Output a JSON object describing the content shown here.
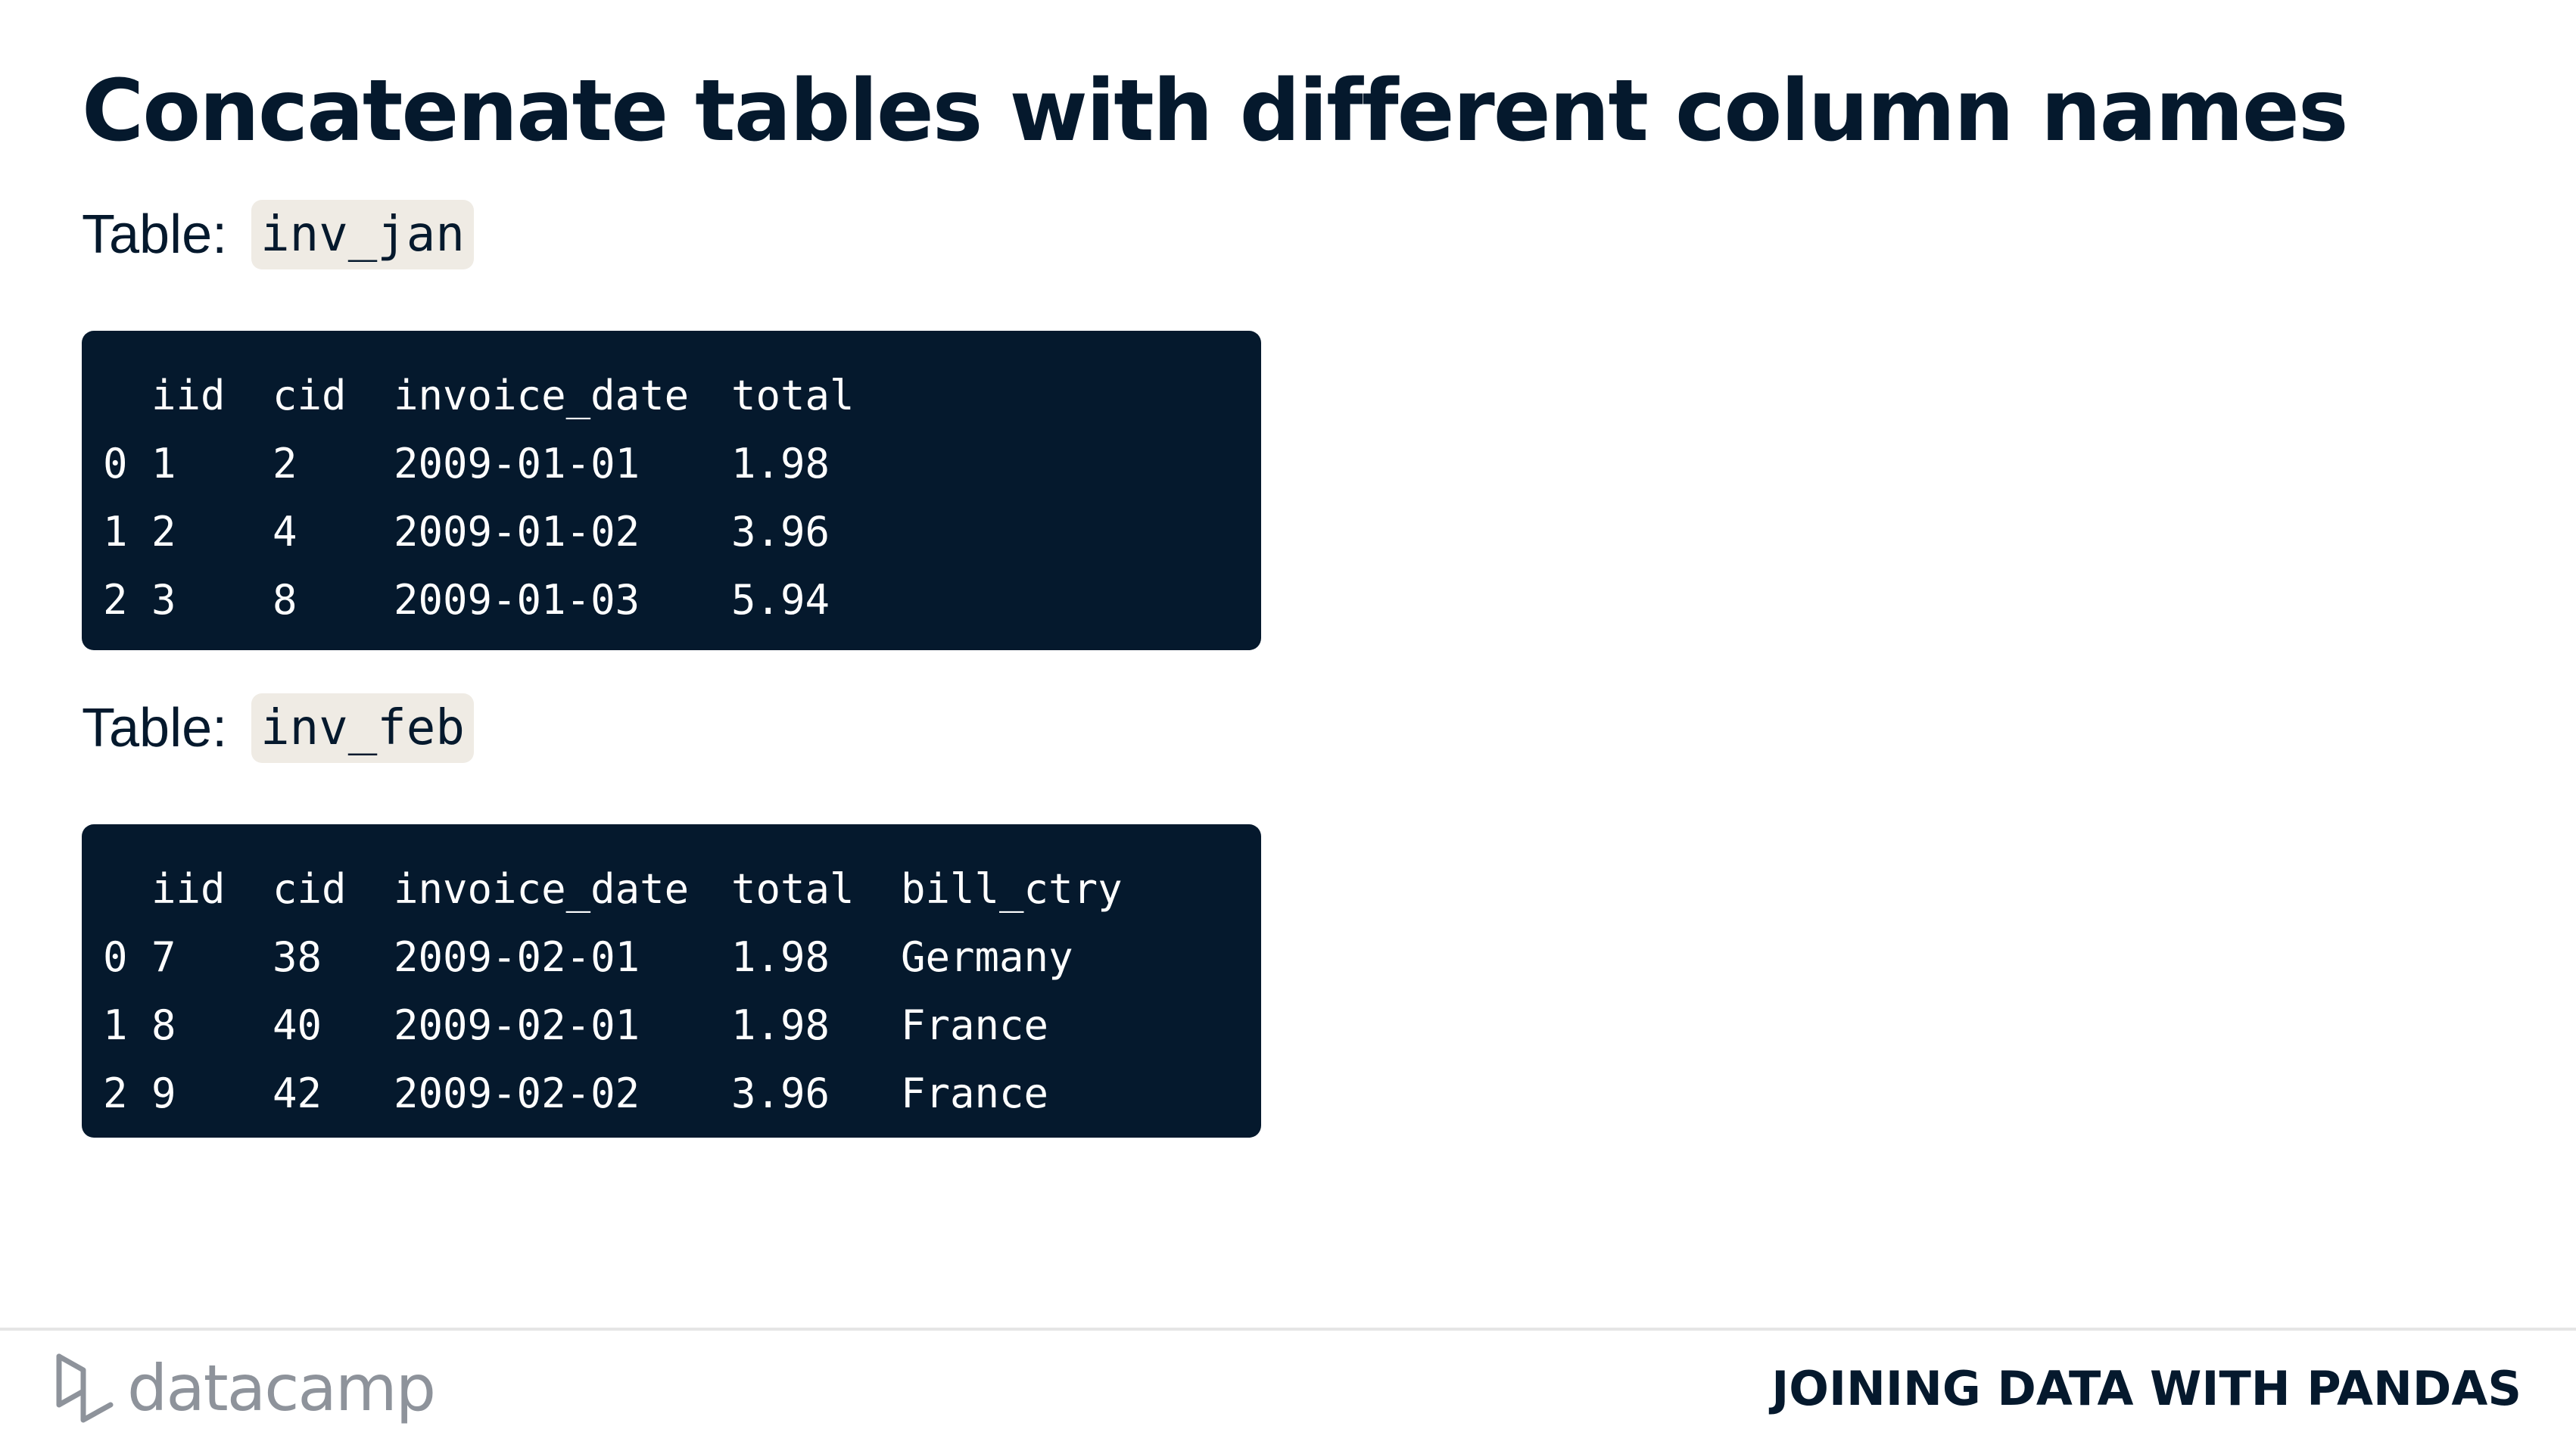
{
  "title": "Concatenate tables with different column names",
  "tables": [
    {
      "label": "Table:",
      "name": "inv_jan",
      "columns": [
        "",
        "iid",
        "cid",
        "invoice_date",
        "total"
      ],
      "rows": [
        [
          "0",
          "1",
          "2",
          "2009-01-01",
          "1.98"
        ],
        [
          "1",
          "2",
          "4",
          "2009-01-02",
          "3.96"
        ],
        [
          "2",
          "3",
          "8",
          "2009-01-03",
          "5.94"
        ]
      ]
    },
    {
      "label": "Table:",
      "name": "inv_feb",
      "columns": [
        "",
        "iid",
        "cid",
        "invoice_date",
        "total",
        "bill_ctry"
      ],
      "rows": [
        [
          "0",
          "7",
          "38",
          "2009-02-01",
          "1.98",
          "Germany"
        ],
        [
          "1",
          "8",
          "40",
          "2009-02-01",
          "1.98",
          "France"
        ],
        [
          "2",
          "9",
          "42",
          "2009-02-02",
          "3.96",
          "France"
        ]
      ]
    }
  ],
  "footer": {
    "logo_text": "datacamp",
    "course": "JOINING DATA WITH PANDAS"
  },
  "colors": {
    "navy": "#05192d",
    "chip": "#efebe4",
    "logo_gray": "#8e939b"
  },
  "icons": {
    "logo": "datacamp-logo-icon"
  }
}
